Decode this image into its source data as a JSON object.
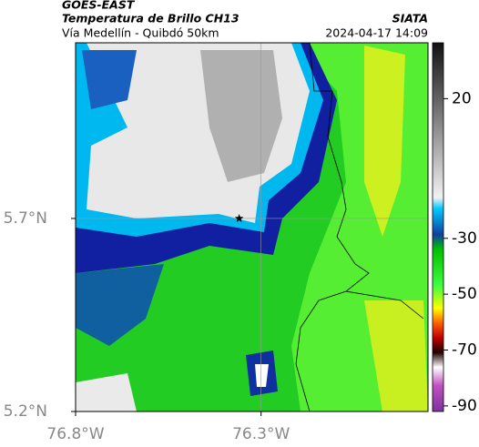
{
  "header": {
    "title": "GOES-EAST",
    "subtitle": "Temperatura de Brillo CH13",
    "source": "SIATA",
    "route": "Vía Medellín - Quibdó 50km",
    "timestamp": "2024-04-17 14:09"
  },
  "map": {
    "xlim": [
      -76.8,
      -75.85
    ],
    "ylim": [
      5.2,
      6.155
    ],
    "xticks": [
      {
        "value": -76.8,
        "label": "76.8°W"
      },
      {
        "value": -76.3,
        "label": "76.3°W"
      }
    ],
    "yticks": [
      {
        "value": 5.2,
        "label": "5.2°N"
      },
      {
        "value": 5.7,
        "label": "5.7°N"
      }
    ],
    "grid_lines": {
      "x": [
        -76.3
      ],
      "y": [
        5.7
      ]
    },
    "marker": {
      "lon": -76.359,
      "lat": 5.7
    }
  },
  "colorbar": {
    "lim": [
      40,
      -92
    ],
    "ticks": [
      20,
      -30,
      -50,
      -70,
      -90
    ]
  }
}
